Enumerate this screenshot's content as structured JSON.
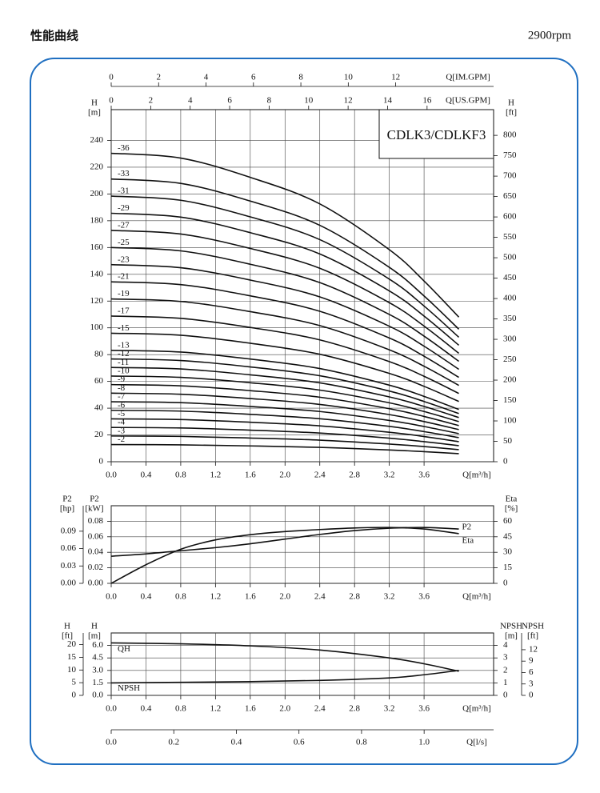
{
  "header": {
    "title": "性能曲线",
    "speed": "2900rpm"
  },
  "chart_data": [
    {
      "type": "line",
      "annotation": "CDLK3/CDLKF3",
      "color": "#111111",
      "grid": true,
      "x": [
        0,
        0.8,
        1.6,
        2.4,
        3.2,
        3.6,
        4.0
      ],
      "xlim": [
        0,
        4.4
      ],
      "xticks": [
        {
          "value": 0,
          "label": "0.0"
        },
        0.4,
        0.8,
        1.2,
        1.6,
        {
          "value": 2,
          "label": "2.0"
        },
        2.4,
        2.8,
        3.2,
        3.6
      ],
      "xlabel": "Q[m³/h]",
      "ylim": [
        0,
        263
      ],
      "yticks": [
        0,
        20,
        40,
        60,
        80,
        100,
        120,
        140,
        160,
        180,
        200,
        220,
        240
      ],
      "ylabel": [
        "H",
        "[m]"
      ],
      "y2lim": [
        0,
        863
      ],
      "y2ticks": [
        0,
        50,
        100,
        150,
        200,
        250,
        300,
        350,
        400,
        450,
        500,
        550,
        600,
        650,
        700,
        750,
        800
      ],
      "y2label": [
        "H",
        "[ft]"
      ],
      "extra_axes": [
        {
          "position": "top",
          "label": "Q[US.GPM]",
          "lim": [
            0,
            19.37
          ],
          "ticks": [
            0,
            2,
            4,
            6,
            8,
            10,
            12,
            14,
            16
          ]
        },
        {
          "position": "top",
          "label": "Q[IM.GPM]",
          "lim": [
            0,
            16.13
          ],
          "ticks": [
            0,
            2,
            4,
            6,
            8,
            10,
            12
          ]
        }
      ],
      "series": [
        {
          "name": "-36",
          "values": [
            230.4,
            226.8,
            212.4,
            192.6,
            158.4,
            135,
            108
          ]
        },
        {
          "name": "-33",
          "values": [
            211.2,
            207.9,
            194.7,
            176.6,
            145.2,
            123.8,
            99
          ]
        },
        {
          "name": "-31",
          "values": [
            198.4,
            195.3,
            182.9,
            165.9,
            136.4,
            116.3,
            93
          ]
        },
        {
          "name": "-29",
          "values": [
            185.6,
            182.7,
            171.1,
            155.2,
            127.6,
            108.8,
            87
          ]
        },
        {
          "name": "-27",
          "values": [
            172.8,
            170.1,
            159.3,
            144.5,
            118.8,
            101.3,
            81
          ]
        },
        {
          "name": "-25",
          "values": [
            160,
            157.5,
            147.5,
            133.8,
            110,
            93.8,
            75
          ]
        },
        {
          "name": "-23",
          "values": [
            147.2,
            144.9,
            135.7,
            123.1,
            101.2,
            86.3,
            69
          ]
        },
        {
          "name": "-21",
          "values": [
            134.4,
            132.3,
            123.9,
            112.4,
            92.4,
            78.8,
            63
          ]
        },
        {
          "name": "-19",
          "values": [
            121.6,
            119.7,
            112.1,
            101.7,
            83.6,
            71.3,
            57
          ]
        },
        {
          "name": "-17",
          "values": [
            108.8,
            107.1,
            100.3,
            91,
            74.8,
            63.8,
            51
          ]
        },
        {
          "name": "-15",
          "values": [
            96,
            94.5,
            88.5,
            80.3,
            66,
            56.3,
            45
          ]
        },
        {
          "name": "-13",
          "values": [
            83.2,
            81.9,
            76.7,
            69.6,
            57.2,
            48.8,
            39
          ]
        },
        {
          "name": "-12",
          "values": [
            76.8,
            75.6,
            70.8,
            64.2,
            52.8,
            45,
            36
          ]
        },
        {
          "name": "-11",
          "values": [
            70.4,
            69.3,
            64.9,
            58.9,
            48.4,
            41.3,
            33
          ]
        },
        {
          "name": "-10",
          "values": [
            64,
            63,
            59,
            53.5,
            44,
            37.5,
            30
          ]
        },
        {
          "name": "-9",
          "values": [
            57.6,
            56.7,
            53.1,
            48.2,
            39.6,
            33.8,
            27
          ]
        },
        {
          "name": "-8",
          "values": [
            51.2,
            50.4,
            47.2,
            42.8,
            35.2,
            30,
            24
          ]
        },
        {
          "name": "-7",
          "values": [
            44.8,
            44.1,
            41.3,
            37.5,
            30.8,
            26.3,
            21
          ]
        },
        {
          "name": "-6",
          "values": [
            38.4,
            37.8,
            35.4,
            32.1,
            26.4,
            22.5,
            18
          ]
        },
        {
          "name": "-5",
          "values": [
            32,
            31.5,
            29.5,
            26.8,
            22,
            18.8,
            15
          ]
        },
        {
          "name": "-4",
          "values": [
            25.6,
            25.2,
            23.6,
            21.4,
            17.6,
            15,
            12
          ]
        },
        {
          "name": "-3",
          "values": [
            19.2,
            18.9,
            17.7,
            16.1,
            13.2,
            11.3,
            9
          ]
        },
        {
          "name": "-2",
          "values": [
            12.8,
            12.6,
            11.8,
            10.7,
            8.8,
            7.5,
            6
          ]
        }
      ]
    },
    {
      "type": "line",
      "color": "#111111",
      "grid": true,
      "x": [
        0,
        0.4,
        0.8,
        1.2,
        1.6,
        2.0,
        2.4,
        2.8,
        3.2,
        3.6,
        4.0
      ],
      "xlim": [
        0,
        4.4
      ],
      "xticks": [
        {
          "value": 0,
          "label": "0.0"
        },
        0.4,
        0.8,
        1.2,
        1.6,
        {
          "value": 2,
          "label": "2.0"
        },
        2.4,
        2.8,
        3.2,
        3.6
      ],
      "xlabel": "Q[m³/h]",
      "ylim": [
        0,
        0.1
      ],
      "yticks": [
        {
          "value": 0,
          "label": "0.00"
        },
        0.02,
        0.04,
        0.06,
        0.08
      ],
      "ylabel": [
        "P2",
        "[kW]"
      ],
      "y2lim": [
        0,
        75
      ],
      "y2ticks": [
        0,
        15,
        30,
        45,
        60
      ],
      "y2label": [
        "Eta",
        "[%]"
      ],
      "extra_axes": [
        {
          "position": "left-outer",
          "label": [
            "P2",
            "[hp]"
          ],
          "lim": [
            0,
            0.134
          ],
          "ticks": [
            {
              "value": 0,
              "label": "0.00"
            },
            0.03,
            0.06,
            0.09
          ]
        }
      ],
      "series": [
        {
          "name": "P2",
          "values": [
            0.035,
            0.038,
            0.042,
            0.046,
            0.051,
            0.057,
            0.063,
            0.068,
            0.071,
            0.072,
            0.07
          ]
        },
        {
          "name": "Eta",
          "axis": "y2",
          "values": [
            0,
            18,
            33,
            42,
            47,
            50,
            52,
            53.5,
            54,
            52.5,
            48
          ]
        }
      ]
    },
    {
      "type": "line",
      "color": "#111111",
      "grid": true,
      "x": [
        0,
        0.8,
        1.6,
        2.4,
        3.2,
        3.6,
        4.0
      ],
      "xlim": [
        0,
        4.4
      ],
      "xticks": [
        {
          "value": 0,
          "label": "0.0"
        },
        0.4,
        0.8,
        1.2,
        1.6,
        {
          "value": 2,
          "label": "2.0"
        },
        2.4,
        2.8,
        3.2,
        3.6
      ],
      "xlabel": "Q[m³/h]",
      "ylim": [
        0,
        7.5
      ],
      "yticks": [
        {
          "value": 0,
          "label": "0.0"
        },
        1.5,
        {
          "value": 3,
          "label": "3.0"
        },
        4.5,
        {
          "value": 6,
          "label": "6.0"
        }
      ],
      "ylabel": [
        "H",
        "[m]"
      ],
      "y2lim": [
        0,
        5
      ],
      "y2ticks": [
        0,
        1,
        2,
        3,
        4
      ],
      "y2label": [
        "NPSH",
        "[m]"
      ],
      "extra_axes": [
        {
          "position": "left-outer",
          "label": [
            "H",
            "[ft]"
          ],
          "lim": [
            0,
            24.6
          ],
          "ticks": [
            0,
            5,
            10,
            15,
            20
          ]
        },
        {
          "position": "right-outer",
          "label": [
            "NPSH",
            "[ft]"
          ],
          "lim": [
            0,
            16.4
          ],
          "ticks": [
            0,
            3,
            6,
            9,
            12
          ]
        },
        {
          "position": "bottom-outer",
          "label": "Q[l/s]",
          "lim": [
            0,
            1.222
          ],
          "ticks": [
            {
              "value": 0,
              "label": "0.0"
            },
            0.2,
            0.4,
            0.6,
            0.8,
            {
              "value": 1,
              "label": "1.0"
            }
          ]
        }
      ],
      "series": [
        {
          "name": "QH",
          "values": [
            6.3,
            6.2,
            5.95,
            5.45,
            4.5,
            3.8,
            2.9
          ]
        },
        {
          "name": "NPSH",
          "axis": "y2",
          "values": [
            1.0,
            1.05,
            1.1,
            1.2,
            1.4,
            1.65,
            2.0
          ]
        }
      ]
    }
  ]
}
